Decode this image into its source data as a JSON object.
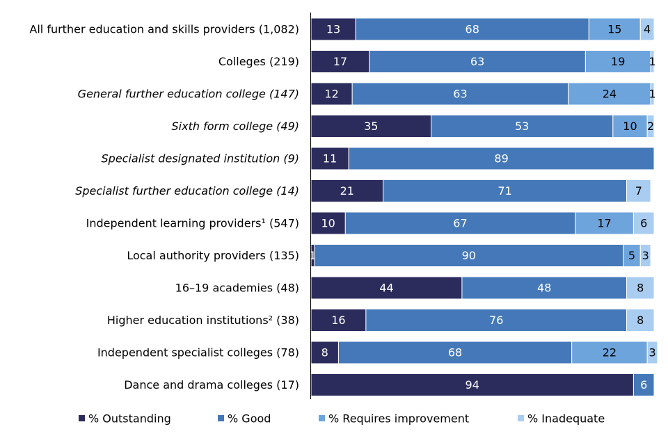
{
  "chart_data": {
    "type": "bar",
    "orientation": "horizontal",
    "stacked": true,
    "xlim": [
      0,
      100
    ],
    "grid": false,
    "legend_position": "bottom",
    "categories": [
      "All further education and skills providers (1,082)",
      "Colleges (219)",
      "General further education college (147)",
      "Sixth form college (49)",
      "Specialist designated institution (9)",
      "Specialist further education college (14)",
      "Independent learning providers¹ (547)",
      "Local authority providers (135)",
      "16–19 academies (48)",
      "Higher education institutions² (38)",
      "Independent specialist colleges (78)",
      "Dance and drama colleges (17)"
    ],
    "italic_categories": [
      2,
      3,
      4,
      5
    ],
    "series": [
      {
        "name": "% Outstanding",
        "color": "#2b2b5c",
        "label_color": "#ffffff",
        "values": [
          13,
          17,
          12,
          35,
          11,
          21,
          10,
          1,
          44,
          16,
          8,
          94
        ]
      },
      {
        "name": "% Good",
        "color": "#4478b8",
        "label_color": "#ffffff",
        "values": [
          68,
          63,
          63,
          53,
          89,
          71,
          67,
          90,
          48,
          76,
          68,
          6
        ]
      },
      {
        "name": "% Requires improvement",
        "color": "#6ea4dc",
        "label_color": "#000000",
        "values": [
          15,
          19,
          24,
          10,
          0,
          0,
          17,
          5,
          0,
          0,
          22,
          0
        ]
      },
      {
        "name": "% Inadequate",
        "color": "#a9cdf0",
        "label_color": "#000000",
        "values": [
          4,
          1,
          1,
          2,
          0,
          7,
          6,
          3,
          8,
          8,
          3,
          0
        ]
      }
    ]
  }
}
